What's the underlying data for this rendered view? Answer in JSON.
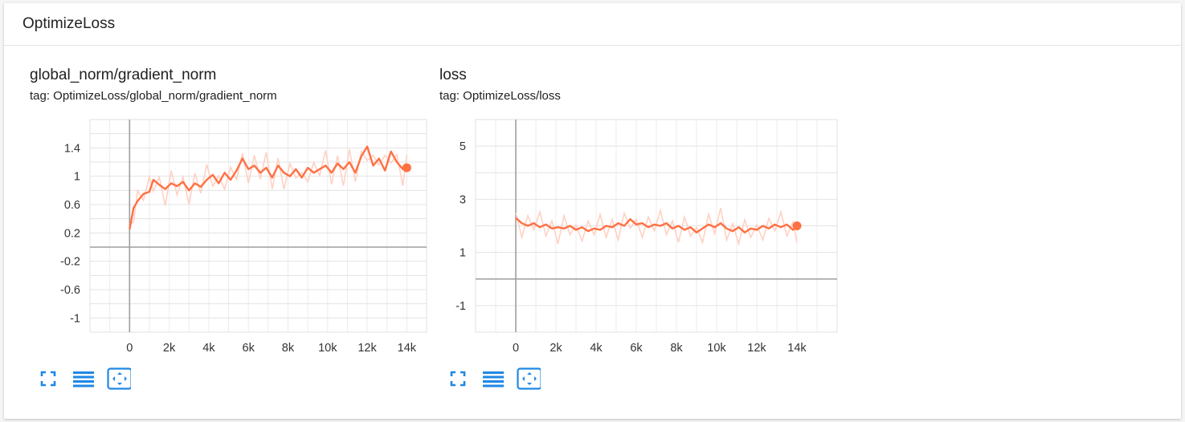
{
  "group": {
    "title": "OptimizeLoss"
  },
  "cards": [
    {
      "title": "global_norm/gradient_norm",
      "tag": "tag: OptimizeLoss/global_norm/gradient_norm",
      "toolbar": [
        "fullscreen-icon",
        "lines-icon",
        "fit-domain-icon"
      ]
    },
    {
      "title": "loss",
      "tag": "tag: OptimizeLoss/loss",
      "toolbar": [
        "fullscreen-icon",
        "lines-icon",
        "fit-domain-icon"
      ]
    }
  ],
  "colors": {
    "series": "#ff7043",
    "raw": "#ffccbc",
    "grid": "#dcdcdc",
    "axis": "#9e9e9e",
    "icon": "#1e88e5"
  },
  "chart_data": [
    {
      "type": "line",
      "title": "global_norm/gradient_norm",
      "xlim": [
        -2000,
        15000
      ],
      "ylim": [
        -1.2,
        1.8
      ],
      "x_ticks": [
        0,
        2000,
        4000,
        6000,
        8000,
        10000,
        12000,
        14000
      ],
      "x_tick_labels": [
        "0",
        "2k",
        "4k",
        "6k",
        "8k",
        "10k",
        "12k",
        "14k"
      ],
      "y_ticks": [
        1.4,
        1,
        0.6,
        0.2,
        -0.2,
        -0.6,
        -1
      ],
      "y_tick_labels": [
        "1.4",
        "1",
        "0.6",
        "0.2",
        "-0.2",
        "-0.6",
        "-1"
      ],
      "series": [
        {
          "x": [
            0,
            200,
            400,
            700,
            1000,
            1200,
            1500,
            1800,
            2100,
            2400,
            2700,
            3000,
            3300,
            3600,
            3900,
            4200,
            4500,
            4800,
            5100,
            5400,
            5700,
            6000,
            6300,
            6600,
            6900,
            7200,
            7500,
            7800,
            8100,
            8400,
            8700,
            9000,
            9300,
            9600,
            9900,
            10200,
            10500,
            10800,
            11100,
            11400,
            11700,
            12000,
            12300,
            12600,
            12900,
            13200,
            13500,
            13800,
            14000
          ],
          "y": [
            0.25,
            0.55,
            0.65,
            0.75,
            0.78,
            0.95,
            0.88,
            0.82,
            0.9,
            0.86,
            0.92,
            0.8,
            0.9,
            0.85,
            0.95,
            1.02,
            0.9,
            1.05,
            0.95,
            1.08,
            1.25,
            1.1,
            1.15,
            1.05,
            1.12,
            0.98,
            1.15,
            1.05,
            1.0,
            1.1,
            0.98,
            1.12,
            1.05,
            1.1,
            1.15,
            1.05,
            1.18,
            1.1,
            1.2,
            1.05,
            1.28,
            1.42,
            1.15,
            1.25,
            1.08,
            1.35,
            1.2,
            1.1,
            1.12
          ]
        }
      ],
      "grid": true
    },
    {
      "type": "line",
      "title": "loss",
      "xlim": [
        -2000,
        16000
      ],
      "ylim": [
        -2,
        6
      ],
      "x_ticks": [
        0,
        2000,
        4000,
        6000,
        8000,
        10000,
        12000,
        14000
      ],
      "x_tick_labels": [
        "0",
        "2k",
        "4k",
        "6k",
        "8k",
        "10k",
        "12k",
        "14k"
      ],
      "y_ticks": [
        5,
        3,
        1,
        -1
      ],
      "y_tick_labels": [
        "5",
        "3",
        "1",
        "-1"
      ],
      "series": [
        {
          "x": [
            0,
            300,
            600,
            900,
            1200,
            1500,
            1800,
            2100,
            2400,
            2700,
            3000,
            3300,
            3600,
            3900,
            4200,
            4500,
            4800,
            5100,
            5400,
            5700,
            6000,
            6300,
            6600,
            6900,
            7200,
            7500,
            7800,
            8100,
            8400,
            8700,
            9000,
            9300,
            9600,
            9900,
            10200,
            10500,
            10800,
            11100,
            11400,
            11700,
            12000,
            12300,
            12600,
            12900,
            13200,
            13500,
            13800,
            14000
          ],
          "y": [
            2.3,
            2.1,
            2.0,
            2.1,
            1.95,
            2.05,
            1.9,
            1.95,
            1.9,
            2.0,
            1.85,
            1.95,
            1.8,
            1.9,
            1.85,
            2.0,
            1.95,
            2.1,
            2.0,
            2.25,
            2.05,
            2.1,
            1.95,
            2.05,
            2.0,
            2.1,
            1.9,
            2.0,
            1.85,
            1.95,
            1.75,
            1.9,
            2.05,
            1.95,
            2.1,
            1.9,
            1.8,
            1.95,
            1.75,
            1.9,
            1.85,
            2.0,
            1.9,
            2.05,
            1.95,
            2.05,
            1.85,
            2.0
          ]
        }
      ],
      "grid": true
    }
  ]
}
